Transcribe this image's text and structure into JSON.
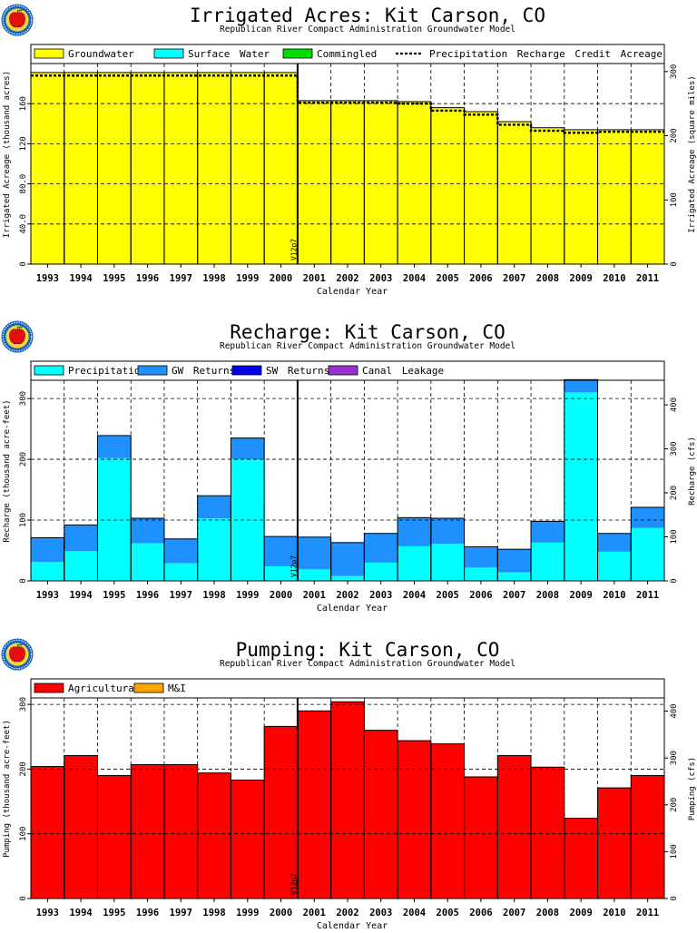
{
  "chart_data": [
    {
      "type": "bar",
      "title": "Irrigated Acres: Kit Carson, CO",
      "subtitle": "Republican River Compact Administration Groundwater Model",
      "xlabel": "Calendar Year",
      "ylabel": "Irrigated Acreage (thousand acres)",
      "ylabel_right": "Irrigated Acreage (square miles)",
      "categories": [
        "1993",
        "1994",
        "1995",
        "1996",
        "1997",
        "1998",
        "1999",
        "2000",
        "2001",
        "2002",
        "2003",
        "2004",
        "2005",
        "2006",
        "2007",
        "2008",
        "2009",
        "2010",
        "2011"
      ],
      "series": [
        {
          "name": "Groundwater",
          "color": "#ffff00",
          "values": [
            191,
            191,
            191,
            191,
            191,
            191,
            191,
            191,
            163,
            163,
            163,
            162,
            156,
            152,
            142,
            136,
            134,
            134,
            134
          ]
        },
        {
          "name": "Surface Water",
          "color": "#00ffff",
          "values": [
            0,
            0,
            0,
            0,
            0,
            0,
            0,
            0,
            0,
            0,
            0,
            0,
            0,
            0,
            0,
            0,
            0,
            0,
            0
          ]
        },
        {
          "name": "Commingled",
          "color": "#00dd00",
          "values": [
            0,
            0,
            0,
            0,
            0,
            0,
            0,
            0,
            0,
            0,
            0,
            0,
            0,
            0,
            0,
            0,
            0,
            0,
            0
          ]
        }
      ],
      "line": {
        "name": "Precipitation Recharge Credit Acreage",
        "values": [
          188,
          188,
          188,
          188,
          188,
          188,
          188,
          188,
          161,
          161,
          161,
          160,
          153,
          149,
          139,
          133,
          131,
          132,
          132
        ]
      },
      "ylim": [
        0,
        200
      ],
      "yticks": [
        0,
        40,
        80,
        120,
        160
      ],
      "ytick_labels": [
        "0",
        "40.0",
        "80.0",
        "120",
        "160"
      ],
      "ylim_right": [
        0,
        312.5
      ],
      "yticks_right": [
        0,
        100,
        200,
        300
      ],
      "grid": true,
      "marker": {
        "label": "V12p7",
        "after": "2000"
      },
      "legend": "top"
    },
    {
      "type": "bar",
      "title": "Recharge: Kit Carson, CO",
      "subtitle": "Republican River Compact Administration Groundwater Model",
      "xlabel": "Calendar Year",
      "ylabel": "Recharge (thousand acre-feet)",
      "ylabel_right": "Recharge (cfs)",
      "categories": [
        "1993",
        "1994",
        "1995",
        "1996",
        "1997",
        "1998",
        "1999",
        "2000",
        "2001",
        "2002",
        "2003",
        "2004",
        "2005",
        "2006",
        "2007",
        "2008",
        "2009",
        "2010",
        "2011"
      ],
      "series": [
        {
          "name": "Precipitation",
          "color": "#00ffff",
          "values": [
            31,
            49,
            202,
            62,
            29,
            103,
            200,
            24,
            19,
            8,
            30,
            57,
            61,
            22,
            14,
            63,
            310,
            48,
            87
          ]
        },
        {
          "name": "GW Returns",
          "color": "#1e90ff",
          "values": [
            40,
            43,
            37,
            41,
            40,
            37,
            35,
            49,
            53,
            55,
            48,
            47,
            42,
            34,
            38,
            35,
            21,
            30,
            34
          ]
        },
        {
          "name": "SW Returns",
          "color": "#0000ee",
          "values": [
            0,
            0,
            0,
            0,
            0,
            0,
            0,
            0,
            0,
            0,
            0,
            0,
            0,
            0,
            0,
            0,
            0,
            0,
            0
          ]
        },
        {
          "name": "Canal Leakage",
          "color": "#9932cc",
          "values": [
            0,
            0,
            0,
            0,
            0,
            0,
            0,
            0,
            0,
            0,
            0,
            0,
            0,
            0,
            0,
            0,
            0,
            0,
            0
          ]
        }
      ],
      "ylim": [
        0,
        330
      ],
      "yticks": [
        0,
        100,
        200,
        300
      ],
      "ylim_right": [
        0,
        455.8
      ],
      "yticks_right": [
        0,
        100,
        200,
        300,
        400
      ],
      "grid": true,
      "marker": {
        "label": "V12p7",
        "after": "2000"
      },
      "legend": "top"
    },
    {
      "type": "bar",
      "title": "Pumping: Kit Carson, CO",
      "subtitle": "Republican River Compact Administration Groundwater Model",
      "xlabel": "Calendar Year",
      "ylabel": "Pumping (thousand acre-feet)",
      "ylabel_right": "Pumping (cfs)",
      "categories": [
        "1993",
        "1994",
        "1995",
        "1996",
        "1997",
        "1998",
        "1999",
        "2000",
        "2001",
        "2002",
        "2003",
        "2004",
        "2005",
        "2006",
        "2007",
        "2008",
        "2009",
        "2010",
        "2011"
      ],
      "series": [
        {
          "name": "Agricultural",
          "color": "#ff0000",
          "values": [
            204,
            221,
            190,
            207,
            207,
            194,
            183,
            266,
            290,
            304,
            260,
            244,
            239,
            188,
            221,
            203,
            124,
            171,
            190
          ]
        },
        {
          "name": "M&I",
          "color": "#ffa500",
          "values": [
            0,
            0,
            0,
            0,
            0,
            0,
            0,
            0,
            0,
            0,
            0,
            0,
            0,
            0,
            0,
            0,
            0,
            0,
            0
          ]
        }
      ],
      "ylim": [
        0,
        310
      ],
      "yticks": [
        0,
        100,
        200,
        300
      ],
      "ylim_right": [
        0,
        428.2
      ],
      "yticks_right": [
        0,
        100,
        200,
        300,
        400
      ],
      "grid": true,
      "marker": {
        "label": "V12p7",
        "after": "2000"
      },
      "legend": "top"
    }
  ]
}
